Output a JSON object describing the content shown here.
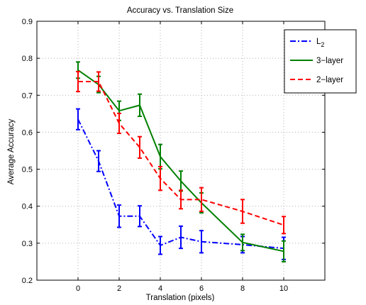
{
  "chart_data": {
    "type": "line",
    "title": "Accuracy vs. Translation Size",
    "xlabel": "Translation (pixels)",
    "ylabel": "Average Accuracy",
    "xlim": [
      -2,
      12
    ],
    "ylim": [
      0.2,
      0.9
    ],
    "x_ticks": [
      0,
      2,
      4,
      6,
      8,
      10
    ],
    "y_ticks": [
      0.2,
      0.3,
      0.4,
      0.5,
      0.6,
      0.7,
      0.8,
      0.9
    ],
    "grid": true,
    "legend_position": "top-right",
    "series": [
      {
        "name": "L",
        "name_subscript": "2",
        "color": "#0000ff",
        "linestyle": "dashdot",
        "x": [
          0,
          1,
          2,
          3,
          4,
          5,
          6,
          8,
          10
        ],
        "y": [
          0.635,
          0.522,
          0.373,
          0.373,
          0.294,
          0.316,
          0.304,
          0.296,
          0.286
        ],
        "err": [
          0.028,
          0.028,
          0.03,
          0.028,
          0.024,
          0.03,
          0.03,
          0.022,
          0.03
        ]
      },
      {
        "name": "3−layer",
        "color": "#008000",
        "linestyle": "solid",
        "x": [
          0,
          1,
          2,
          3,
          4,
          5,
          6,
          8,
          10
        ],
        "y": [
          0.768,
          0.729,
          0.658,
          0.673,
          0.534,
          0.468,
          0.409,
          0.302,
          0.278
        ],
        "err": [
          0.022,
          0.022,
          0.026,
          0.03,
          0.033,
          0.027,
          0.027,
          0.022,
          0.028
        ]
      },
      {
        "name": "2−layer",
        "color": "#ff0000",
        "linestyle": "dashed",
        "x": [
          0,
          1,
          2,
          3,
          4,
          5,
          6,
          8,
          10
        ],
        "y": [
          0.737,
          0.737,
          0.624,
          0.559,
          0.475,
          0.418,
          0.418,
          0.386,
          0.349
        ],
        "err": [
          0.027,
          0.026,
          0.027,
          0.029,
          0.032,
          0.025,
          0.032,
          0.032,
          0.023
        ]
      }
    ]
  }
}
